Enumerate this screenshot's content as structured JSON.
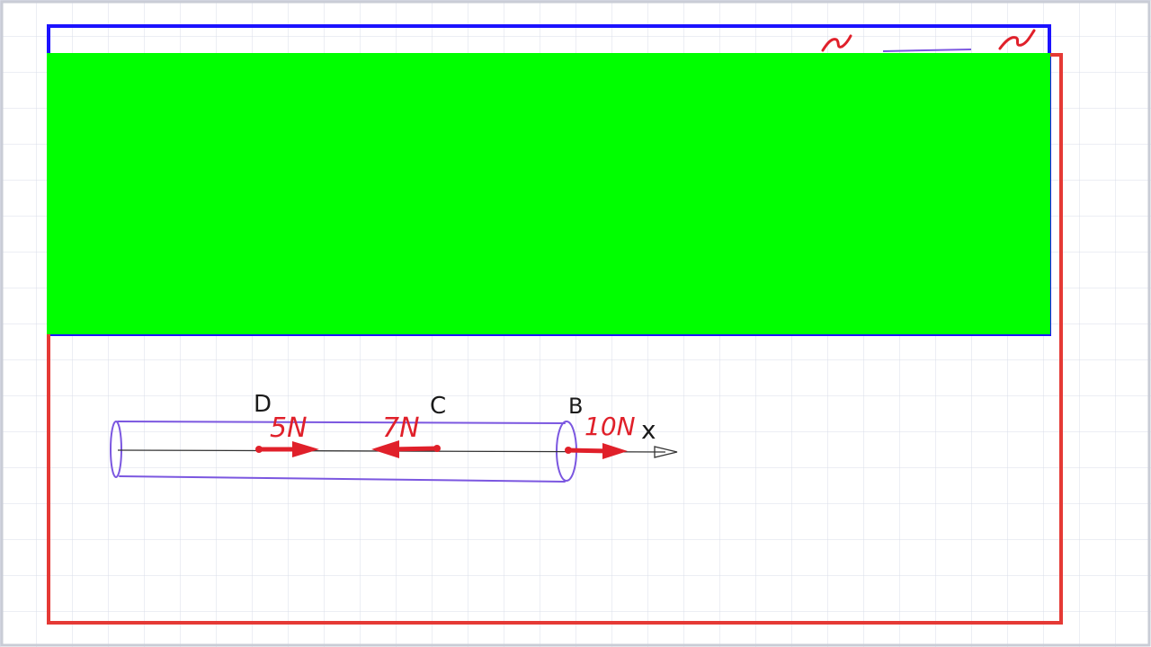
{
  "diagram": {
    "points": {
      "d": "D",
      "c": "C",
      "b": "B"
    },
    "forces": {
      "five": "5N",
      "seven": "7N",
      "ten": "10N"
    },
    "axis_label": "x"
  },
  "colors": {
    "background": "#ffffff",
    "grid": "#d9dde8",
    "frame_outer": "#e53935",
    "frame_blue": "#1c12ff",
    "cover_box": "#00ff00",
    "cylinder": "#7b57e0",
    "force": "#e0202a",
    "ink": "#1a1a1a"
  }
}
